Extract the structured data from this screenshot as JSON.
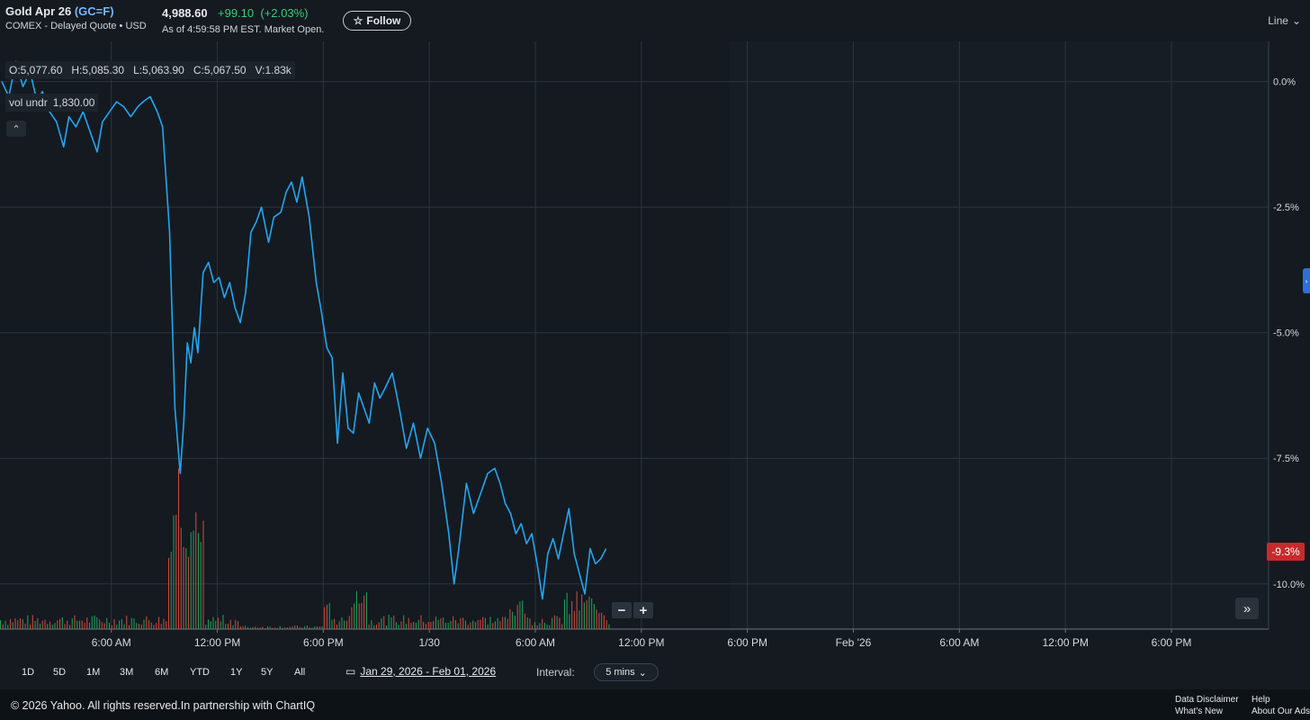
{
  "header": {
    "name": "Gold Apr 26",
    "ticker": "(GC=F)",
    "exchange_line": "COMEX - Delayed Quote • USD",
    "price": "4,988.60",
    "change": "+99.10",
    "change_pct": "(+2.03%)",
    "as_of": "As of 4:59:58 PM EST. Market Open.",
    "follow_label": "Follow",
    "chart_type": "Line"
  },
  "ohlc": {
    "open": "O:5,077.60",
    "high": "H:5,085.30",
    "low": "L:5,063.90",
    "close": "C:5,067.50",
    "volume": "V:1.83k"
  },
  "vol_undr": {
    "label": "vol undr",
    "value": "1,830.00"
  },
  "last_badge": "-9.3%",
  "range_buttons": [
    "1D",
    "5D",
    "1M",
    "3M",
    "6M",
    "YTD",
    "1Y",
    "5Y",
    "All"
  ],
  "date_range": "Jan 29, 2026 - Feb 01, 2026",
  "interval": {
    "label": "Interval:",
    "value": "5 mins"
  },
  "footer": {
    "copyright": "© 2026 Yahoo. All rights reserved.In partnership with ChartIQ",
    "links": [
      "Data Disclaimer",
      "What's New",
      "Help",
      "About Our Ads"
    ]
  },
  "colors": {
    "line": "#21a6f3",
    "up_volume": "#1f9a5a",
    "down_volume": "#c9463d",
    "badge": "#c62b2b",
    "change_positive": "#3ccb7f",
    "background": "#141a20"
  },
  "chart_data": {
    "type": "line",
    "y_axis_ticks": [
      "0.0%",
      "-2.5%",
      "-5.0%",
      "-7.5%",
      "-10.0%"
    ],
    "y_tick_values": [
      0,
      -2.5,
      -5,
      -7.5,
      -10
    ],
    "ylim": [
      -10.9,
      0.8
    ],
    "x_axis_ticks": [
      "6:00 AM",
      "12:00 PM",
      "6:00 PM",
      "1/30",
      "6:00 AM",
      "12:00 PM",
      "6:00 PM",
      "Feb '26",
      "6:00 AM",
      "12:00 PM",
      "6:00 PM"
    ],
    "x_tick_hours": [
      6,
      12,
      18,
      24,
      30,
      36,
      42,
      48,
      54,
      60,
      66
    ],
    "xlim_hours": [
      -0.3,
      71.5
    ],
    "x_unit": "hours from Jan 29, 2026 00:00",
    "grid": true,
    "series": [
      {
        "x": [
          -0.2,
          0.2,
          0.6,
          1.0,
          1.4,
          1.8,
          2.1,
          2.5,
          2.9,
          3.3,
          3.6,
          4.0,
          4.4,
          4.8,
          5.2,
          5.5,
          5.9,
          6.3,
          6.7,
          7.1,
          7.5,
          7.8,
          8.2,
          8.6,
          8.9,
          9.3,
          9.6,
          9.9,
          10.1,
          10.3,
          10.5,
          10.7,
          10.9,
          11.2,
          11.5,
          11.8,
          12.1,
          12.4,
          12.7,
          13.0,
          13.3,
          13.6,
          13.9,
          14.2,
          14.5,
          14.9,
          15.2,
          15.6,
          15.9,
          16.2,
          16.5,
          16.8,
          17.2,
          17.6,
          17.9,
          18.2,
          18.5,
          18.8,
          19.1,
          19.4,
          19.7,
          20.0,
          20.3,
          20.6,
          20.9,
          21.2,
          21.5,
          21.9,
          22.3,
          22.7,
          23.1,
          23.5,
          23.9,
          24.3,
          24.7,
          25.1,
          25.4,
          25.7,
          26.1,
          26.5,
          26.9,
          27.3,
          27.7,
          28.0,
          28.3,
          28.6,
          28.9,
          29.2,
          29.5,
          29.8,
          30.1,
          30.4,
          30.7,
          31.0,
          31.3,
          31.6,
          31.9,
          32.2,
          32.5,
          32.8,
          33.1,
          33.4,
          33.7,
          34.0
        ],
        "y": [
          0.0,
          -0.3,
          0.4,
          -0.1,
          0.2,
          -0.4,
          -0.2,
          -0.6,
          -0.8,
          -1.3,
          -0.7,
          -0.9,
          -0.6,
          -1.0,
          -1.4,
          -0.8,
          -0.6,
          -0.4,
          -0.5,
          -0.7,
          -0.5,
          -0.4,
          -0.3,
          -0.6,
          -0.9,
          -3.0,
          -6.5,
          -7.8,
          -6.8,
          -5.2,
          -5.6,
          -4.9,
          -5.4,
          -3.8,
          -3.6,
          -4.0,
          -3.9,
          -4.3,
          -4.0,
          -4.5,
          -4.8,
          -4.2,
          -3.0,
          -2.8,
          -2.5,
          -3.2,
          -2.7,
          -2.6,
          -2.2,
          -2.0,
          -2.4,
          -1.9,
          -2.7,
          -4.0,
          -4.6,
          -5.3,
          -5.5,
          -7.2,
          -5.8,
          -6.9,
          -7.0,
          -6.2,
          -6.5,
          -6.8,
          -6.0,
          -6.3,
          -6.1,
          -5.8,
          -6.5,
          -7.3,
          -6.8,
          -7.5,
          -6.9,
          -7.2,
          -8.0,
          -9.0,
          -10.0,
          -9.2,
          -8.0,
          -8.6,
          -8.2,
          -7.8,
          -7.7,
          -8.0,
          -8.4,
          -8.6,
          -9.0,
          -8.8,
          -9.2,
          -9.0,
          -9.6,
          -10.3,
          -9.4,
          -9.1,
          -9.5,
          -9.0,
          -8.5,
          -9.4,
          -9.8,
          -10.2,
          -9.3,
          -9.6,
          -9.5,
          -9.3
        ],
        "color": "#21a6f3"
      }
    ],
    "volume_bars": "up (green) / down (red) bars along the bottom, largest spike near the 10:00 AM drop on Jan 29"
  }
}
